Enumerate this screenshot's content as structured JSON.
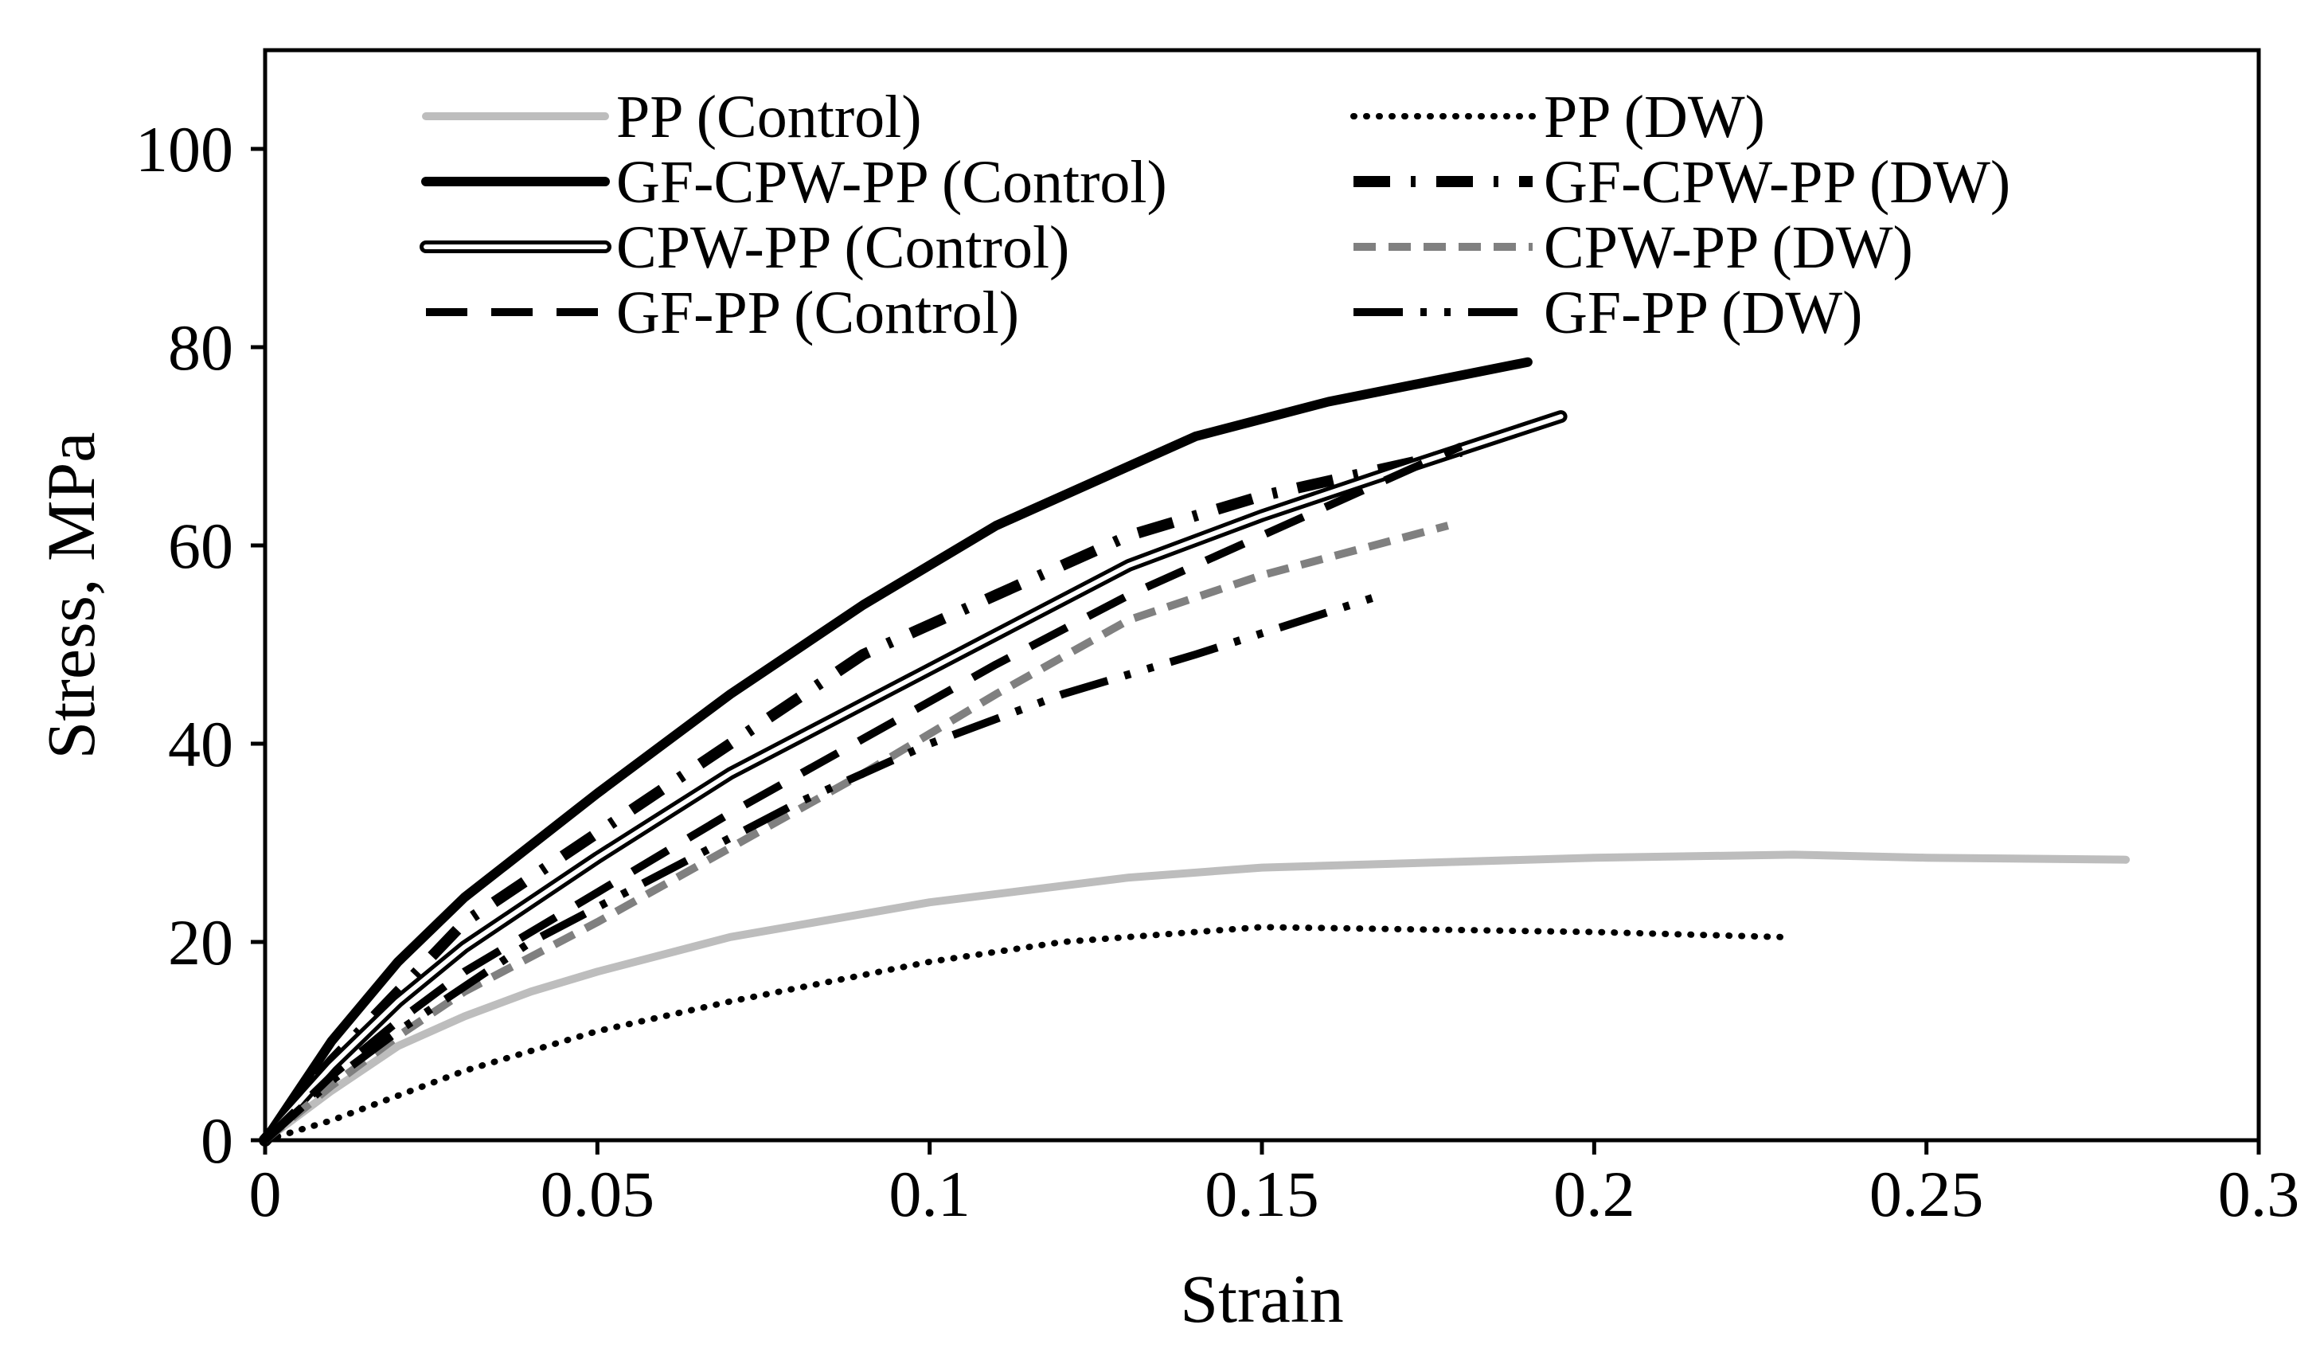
{
  "chart_data": {
    "type": "line",
    "title": "",
    "xlabel": "Strain",
    "ylabel": "Stress, MPa",
    "xlim": [
      0,
      0.3
    ],
    "ylim": [
      0,
      110
    ],
    "x_ticks": [
      "0",
      "0.05",
      "0.1",
      "0.15",
      "0.2",
      "0.25",
      "0.3"
    ],
    "y_ticks": [
      "0",
      "20",
      "40",
      "60",
      "80",
      "100"
    ],
    "x_tick_values": [
      0,
      0.05,
      0.1,
      0.15,
      0.2,
      0.25,
      0.3
    ],
    "y_tick_values": [
      0,
      20,
      40,
      60,
      80,
      100
    ],
    "grid": false,
    "legend_position": "top",
    "series": [
      {
        "name": "PP (Control)",
        "color": "#bdbdbd",
        "style": "solid",
        "x": [
          0,
          0.01,
          0.02,
          0.03,
          0.04,
          0.05,
          0.07,
          0.1,
          0.13,
          0.15,
          0.2,
          0.23,
          0.25,
          0.28
        ],
        "y": [
          0,
          5,
          9.5,
          12.5,
          15,
          17,
          20.5,
          24,
          26.5,
          27.5,
          28.5,
          28.8,
          28.5,
          28.3
        ]
      },
      {
        "name": "PP (DW)",
        "color": "#000000",
        "style": "dotted",
        "x": [
          0,
          0.01,
          0.02,
          0.03,
          0.05,
          0.07,
          0.1,
          0.12,
          0.14,
          0.15,
          0.17,
          0.2,
          0.228
        ],
        "y": [
          0,
          2,
          4.5,
          7,
          11,
          14,
          18,
          20,
          21,
          21.5,
          21.3,
          21,
          20.5
        ]
      },
      {
        "name": "GF-CPW-PP (Control)",
        "color": "#000000",
        "style": "solid-thick",
        "x": [
          0,
          0.01,
          0.02,
          0.03,
          0.05,
          0.07,
          0.09,
          0.11,
          0.14,
          0.16,
          0.19
        ],
        "y": [
          0,
          10,
          18,
          24.5,
          35,
          45,
          54,
          62,
          71,
          74.5,
          78.5
        ]
      },
      {
        "name": "GF-CPW-PP (DW)",
        "color": "#000000",
        "style": "dash-dot-thick",
        "x": [
          0,
          0.01,
          0.02,
          0.03,
          0.05,
          0.07,
          0.09,
          0.11,
          0.13,
          0.15,
          0.17,
          0.18
        ],
        "y": [
          0,
          8,
          15,
          22,
          31,
          40,
          49,
          55,
          61,
          65,
          68,
          69.5
        ]
      },
      {
        "name": "CPW-PP (Control)",
        "color": "#000000",
        "style": "double",
        "x": [
          0,
          0.01,
          0.02,
          0.03,
          0.05,
          0.07,
          0.09,
          0.11,
          0.13,
          0.15,
          0.17,
          0.195
        ],
        "y": [
          0,
          7.5,
          14,
          19.5,
          28.5,
          37,
          44,
          51,
          58,
          63,
          67.5,
          73
        ]
      },
      {
        "name": "CPW-PP (DW)",
        "color": "#808080",
        "style": "dashed",
        "x": [
          0,
          0.01,
          0.02,
          0.03,
          0.05,
          0.07,
          0.09,
          0.11,
          0.13,
          0.15,
          0.178
        ],
        "y": [
          0,
          5.5,
          10.5,
          15,
          22,
          29.5,
          37,
          45,
          52.5,
          57,
          62
        ]
      },
      {
        "name": "GF-PP (Control)",
        "color": "#000000",
        "style": "long-dash",
        "x": [
          0,
          0.01,
          0.02,
          0.03,
          0.05,
          0.07,
          0.09,
          0.11,
          0.13,
          0.15,
          0.18
        ],
        "y": [
          0,
          6.5,
          12,
          17,
          25,
          33,
          40.5,
          48,
          55,
          61,
          70
        ]
      },
      {
        "name": "GF-PP (DW)",
        "color": "#000000",
        "style": "dash-dot-dot",
        "x": [
          0,
          0.01,
          0.02,
          0.04,
          0.06,
          0.08,
          0.1,
          0.12,
          0.14,
          0.168
        ],
        "y": [
          0,
          6,
          11,
          20,
          27,
          34,
          40,
          45,
          49,
          55
        ]
      }
    ]
  }
}
